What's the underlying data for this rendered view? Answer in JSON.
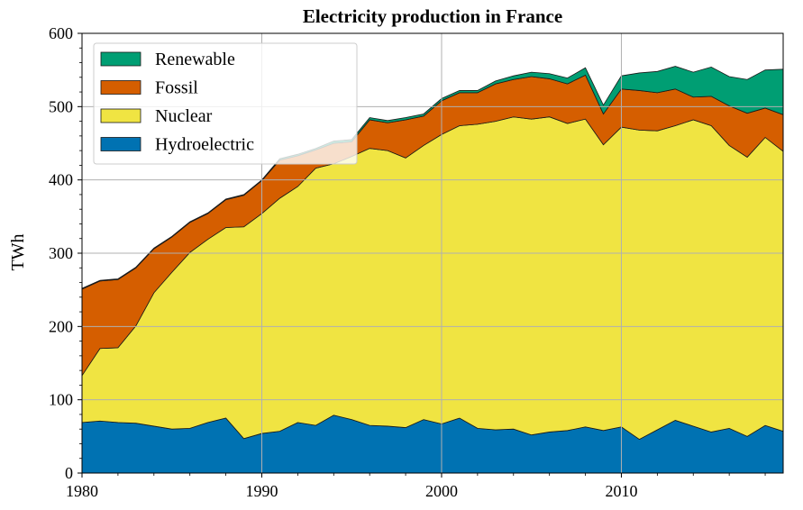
{
  "chart_data": {
    "type": "area",
    "stacked": true,
    "title": "Electricity production in France",
    "xlabel": "",
    "ylabel": "TWh",
    "xlim": [
      1980,
      2019
    ],
    "ylim": [
      0,
      600
    ],
    "xticks": [
      1980,
      1990,
      2000,
      2010
    ],
    "yticks": [
      0,
      100,
      200,
      300,
      400,
      500,
      600
    ],
    "grid": true,
    "legend_position": "top-left",
    "x": [
      1980,
      1981,
      1982,
      1983,
      1984,
      1985,
      1986,
      1987,
      1988,
      1989,
      1990,
      1991,
      1992,
      1993,
      1994,
      1995,
      1996,
      1997,
      1998,
      1999,
      2000,
      2001,
      2002,
      2003,
      2004,
      2005,
      2006,
      2007,
      2008,
      2009,
      2010,
      2011,
      2012,
      2013,
      2014,
      2015,
      2016,
      2017,
      2018,
      2019
    ],
    "series": [
      {
        "name": "Hydroelectric",
        "color": "#0072b2",
        "values": [
          69,
          71,
          69,
          68,
          64,
          60,
          61,
          69,
          75,
          47,
          54,
          57,
          69,
          65,
          79,
          73,
          65,
          64,
          62,
          73,
          67,
          75,
          61,
          59,
          60,
          52,
          56,
          58,
          63,
          58,
          63,
          46,
          59,
          72,
          64,
          56,
          61,
          50,
          65,
          57
        ]
      },
      {
        "name": "Nuclear",
        "color": "#f0e442",
        "values": [
          64,
          99,
          102,
          133,
          182,
          214,
          240,
          250,
          260,
          289,
          300,
          318,
          322,
          351,
          343,
          359,
          378,
          376,
          368,
          374,
          395,
          399,
          415,
          421,
          426,
          431,
          430,
          419,
          420,
          390,
          409,
          422,
          408,
          402,
          418,
          418,
          386,
          381,
          393,
          382
        ]
      },
      {
        "name": "Fossil",
        "color": "#d55e00",
        "values": [
          118,
          92,
          93,
          79,
          60,
          48,
          41,
          35,
          38,
          43,
          45,
          52,
          42,
          25,
          28,
          20,
          39,
          38,
          52,
          40,
          46,
          45,
          43,
          51,
          51,
          58,
          52,
          54,
          60,
          42,
          52,
          54,
          52,
          50,
          31,
          40,
          54,
          60,
          40,
          50
        ]
      },
      {
        "name": "Renewable",
        "color": "#009e73",
        "values": [
          1,
          1,
          1,
          1,
          1,
          1,
          1,
          1,
          1,
          1,
          1,
          2,
          2,
          2,
          3,
          3,
          3,
          3,
          3,
          3,
          3,
          3,
          3,
          4,
          5,
          6,
          7,
          8,
          10,
          12,
          18,
          24,
          29,
          31,
          34,
          40,
          40,
          46,
          52,
          62
        ]
      }
    ]
  }
}
